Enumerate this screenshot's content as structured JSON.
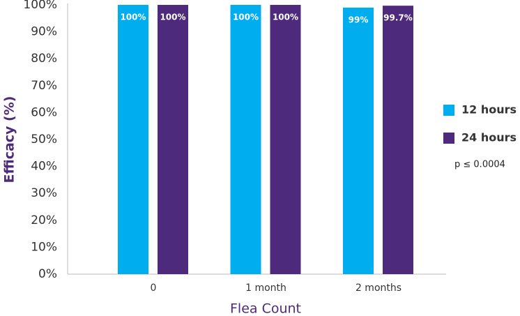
{
  "chart_data": {
    "type": "bar",
    "y_label": "Efficacy (%)",
    "x_label": "Flea Count",
    "annotation": "p ≤ 0.0004",
    "categories": [
      "0",
      "1 month",
      "2 months"
    ],
    "series": [
      {
        "name": "12 hours",
        "color": "#00aeef",
        "values": [
          100,
          100,
          99
        ],
        "value_labels": [
          "100%",
          "100%",
          "99%"
        ]
      },
      {
        "name": "24 hours",
        "color": "#4e2a7c",
        "values": [
          100,
          100,
          99.7
        ],
        "value_labels": [
          "100%",
          "100%",
          "99.7%"
        ]
      }
    ],
    "ylim": [
      0,
      100
    ],
    "yticks": [
      {
        "value": 0,
        "label": "0%"
      },
      {
        "value": 10,
        "label": "10%"
      },
      {
        "value": 20,
        "label": "20%"
      },
      {
        "value": 30,
        "label": "30%"
      },
      {
        "value": 40,
        "label": "40%"
      },
      {
        "value": 50,
        "label": "50%"
      },
      {
        "value": 60,
        "label": "60%"
      },
      {
        "value": 70,
        "label": "70%"
      },
      {
        "value": 80,
        "label": "80%"
      },
      {
        "value": 90,
        "label": "90%"
      },
      {
        "value": 100,
        "label": "100%"
      }
    ],
    "grid": false,
    "legend": "right"
  }
}
